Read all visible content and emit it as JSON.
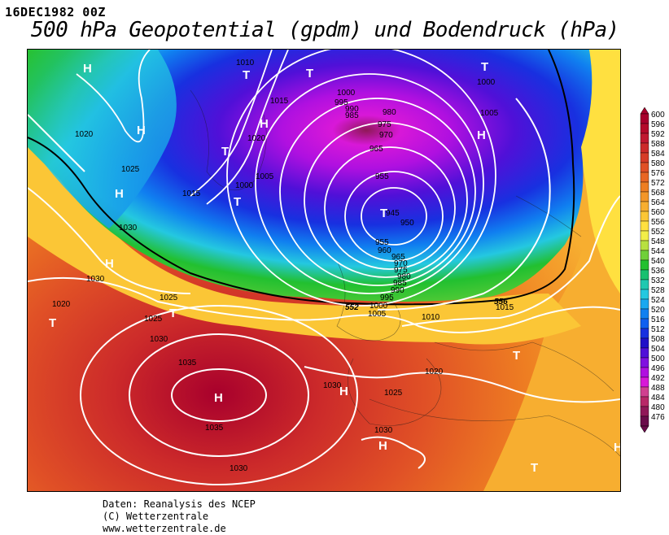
{
  "header": {
    "datestamp": "16DEC1982 00Z",
    "title": "500 hPa Geopotential (gpdm) und Bodendruck (hPa)"
  },
  "credits": {
    "line1": "Daten: Reanalysis des NCEP",
    "line2": "(C) Wetterzentrale",
    "line3": "www.wetterzentrale.de"
  },
  "legend": {
    "units": "gpdm",
    "levels": [
      600,
      596,
      592,
      588,
      584,
      580,
      576,
      572,
      568,
      564,
      560,
      556,
      552,
      548,
      544,
      540,
      536,
      532,
      528,
      524,
      520,
      516,
      512,
      508,
      504,
      500,
      496,
      492,
      488,
      484,
      480,
      476
    ],
    "colors": [
      "#a8002c",
      "#b40a2a",
      "#c01830",
      "#cc2a2a",
      "#d63c28",
      "#e05026",
      "#e86624",
      "#ee7e22",
      "#f39628",
      "#f7ae30",
      "#fbc636",
      "#ffe040",
      "#f2ee48",
      "#b8e040",
      "#70d03a",
      "#22c030",
      "#18c070",
      "#20c8b0",
      "#24c8e0",
      "#1aa8f0",
      "#1080f0",
      "#1060f0",
      "#1830e0",
      "#2010c8",
      "#5010d8",
      "#8010e0",
      "#b010e0",
      "#d818d8",
      "#d04090",
      "#b82868",
      "#901858",
      "#6a0c4a"
    ]
  },
  "map": {
    "pressure_labels": [
      "1035",
      "1030",
      "1025",
      "1020",
      "1015",
      "1010",
      "1005",
      "1000",
      "995",
      "990",
      "985",
      "980",
      "975",
      "970",
      "965",
      "960",
      "955",
      "950",
      "945"
    ],
    "geopotential_labels": [
      "552",
      "556"
    ],
    "high_symbol": "H",
    "low_symbol": "T"
  }
}
